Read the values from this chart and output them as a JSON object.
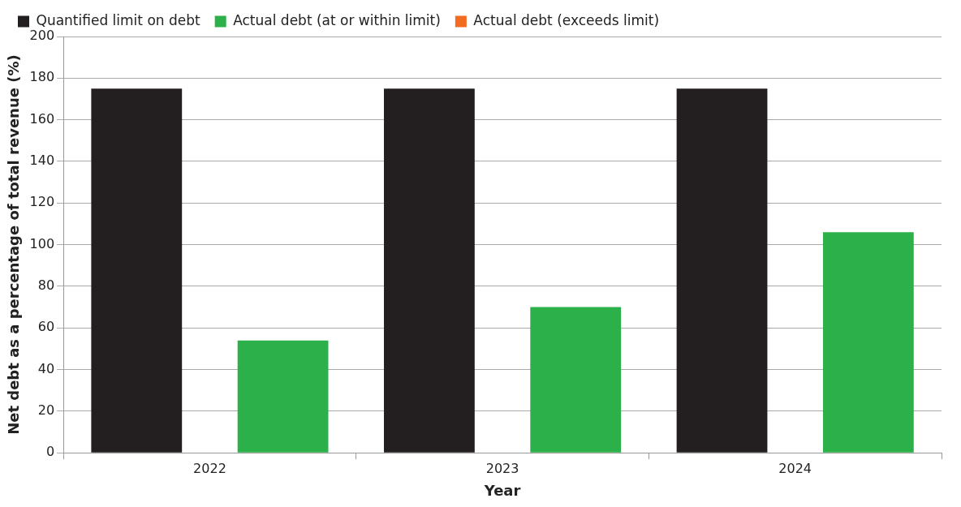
{
  "chart_data": {
    "type": "bar",
    "xlabel": "Year",
    "ylabel": "Net debt as a percentage of total revenue (%)",
    "categories": [
      "2022",
      "2023",
      "2024"
    ],
    "series": [
      {
        "name": "Quantified limit on debt",
        "color": "#231f20",
        "values": [
          175,
          175,
          175
        ]
      },
      {
        "name": "Actual debt (at or within limit)",
        "color": "#2bb04a",
        "values": [
          54,
          70,
          106
        ]
      },
      {
        "name": "Actual debt (exceeds limit)",
        "color": "#f26b21",
        "values": [
          null,
          null,
          null
        ]
      }
    ],
    "ylim": [
      0,
      200
    ],
    "yticks": [
      0,
      20,
      40,
      60,
      80,
      100,
      120,
      140,
      160,
      180,
      200
    ],
    "grid": "y",
    "legend": "top left"
  }
}
